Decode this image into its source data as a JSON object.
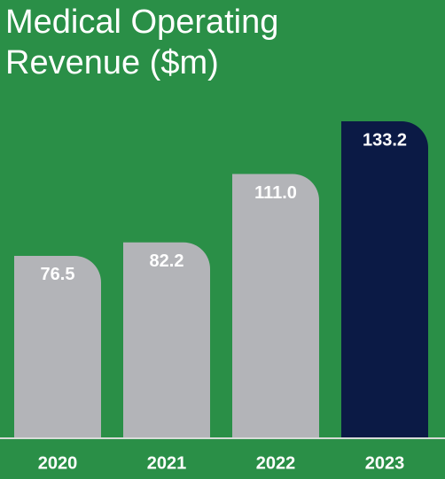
{
  "chart_data": {
    "type": "bar",
    "title": "Medical Operating Revenue ($m)",
    "categories": [
      "2020",
      "2021",
      "2022",
      "2023"
    ],
    "values": [
      76.5,
      82.2,
      111.0,
      133.2
    ],
    "value_labels": [
      "76.5",
      "82.2",
      "111.0",
      "133.2"
    ],
    "colors": [
      "#b3b4b8",
      "#b3b4b8",
      "#b3b4b8",
      "#0b1a45"
    ]
  }
}
